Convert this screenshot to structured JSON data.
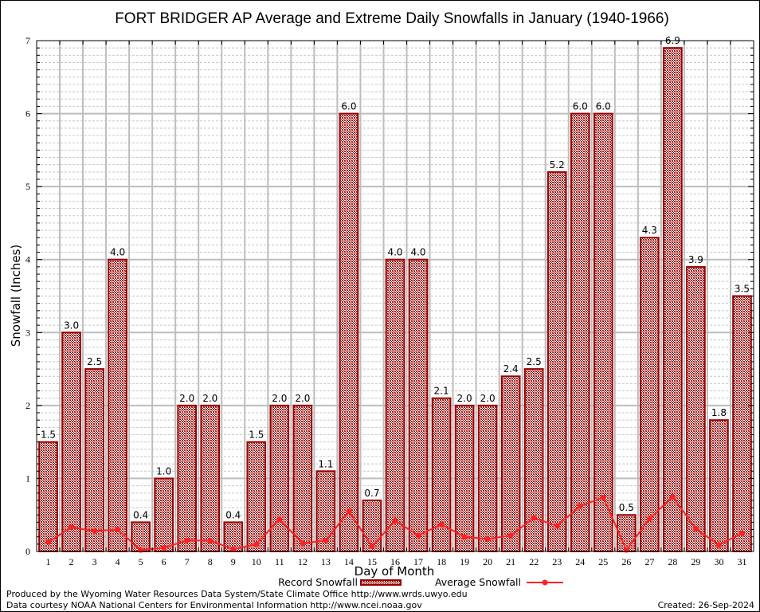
{
  "chart_data": {
    "type": "bar",
    "title": "FORT BRIDGER AP Average and Extreme Daily Snowfalls in January (1940-1966)",
    "xlabel": "Day of Month",
    "ylabel": "Snowfall (Inches)",
    "ylim": [
      0,
      7
    ],
    "yticks": [
      0,
      1,
      2,
      3,
      4,
      5,
      6,
      7
    ],
    "grid": true,
    "categories": [
      "1",
      "2",
      "3",
      "4",
      "5",
      "6",
      "7",
      "8",
      "9",
      "10",
      "11",
      "12",
      "13",
      "14",
      "15",
      "16",
      "17",
      "18",
      "19",
      "20",
      "21",
      "22",
      "23",
      "24",
      "25",
      "26",
      "27",
      "28",
      "29",
      "30",
      "31"
    ],
    "series": [
      {
        "name": "Record Snowfall",
        "type": "bar",
        "color": "#990000",
        "values": [
          1.5,
          3.0,
          2.5,
          4.0,
          0.4,
          1.0,
          2.0,
          2.0,
          0.4,
          1.5,
          2.0,
          2.0,
          1.1,
          6.0,
          0.7,
          4.0,
          4.0,
          2.1,
          2.0,
          2.0,
          2.4,
          2.5,
          5.2,
          6.0,
          6.0,
          0.5,
          4.3,
          6.9,
          3.9,
          1.8,
          3.5
        ],
        "labels": [
          "1.5",
          "3.0",
          "2.5",
          "4.0",
          "0.4",
          "1.0",
          "2.0",
          "2.0",
          "0.4",
          "1.5",
          "2.0",
          "2.0",
          "1.1",
          "6.0",
          "0.7",
          "4.0",
          "4.0",
          "2.1",
          "2.0",
          "2.0",
          "2.4",
          "2.5",
          "5.2",
          "6.0",
          "6.0",
          "0.5",
          "4.3",
          "6.9",
          "3.9",
          "1.8",
          "3.5"
        ]
      },
      {
        "name": "Average Snowfall",
        "type": "line",
        "color": "#ff2020",
        "values": [
          0.13,
          0.33,
          0.28,
          0.3,
          0.02,
          0.05,
          0.15,
          0.15,
          0.03,
          0.1,
          0.44,
          0.11,
          0.15,
          0.55,
          0.07,
          0.42,
          0.22,
          0.37,
          0.2,
          0.17,
          0.22,
          0.46,
          0.35,
          0.62,
          0.74,
          0.02,
          0.45,
          0.75,
          0.31,
          0.09,
          0.25
        ]
      }
    ],
    "legend": [
      "Record Snowfall",
      "Average Snowfall"
    ],
    "legend_position": "bottom"
  },
  "footer": {
    "line1": "Produced by the Wyoming Water Resources Data System/State Climate Office http://www.wrds.uwyo.edu",
    "line2": "Data courtesy NOAA National Centers for Environmental Information http://www.ncei.noaa.gov",
    "created": "Created: 26-Sep-2024"
  }
}
